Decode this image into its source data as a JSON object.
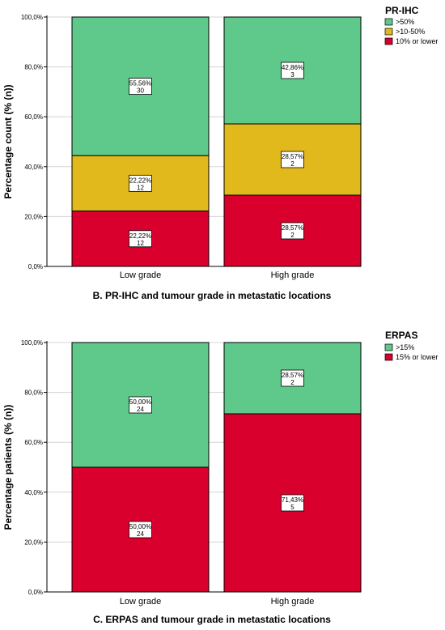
{
  "chart_data": [
    {
      "type": "bar",
      "stacked": true,
      "title": "B. PR-IHC and tumour grade in metastatic locations",
      "ylabel": "Percentage count (% (n))",
      "ylim": [
        0,
        100
      ],
      "yticks": [
        "0,0%",
        "20,0%",
        "40,0%",
        "60,0%",
        "80,0%",
        "100,0%"
      ],
      "categories": [
        "Low grade",
        "High grade"
      ],
      "legend_title": "PR-IHC",
      "legend_position": "top-right",
      "grid": true,
      "series": [
        {
          "name": "10% or lower",
          "color": "#d9002e",
          "values": [
            22.22,
            28.57
          ],
          "labels": [
            "22,22%",
            "28,57%"
          ],
          "counts": [
            "12",
            "2"
          ]
        },
        {
          "name": ">10-50%",
          "color": "#e1b91c",
          "values": [
            22.22,
            28.57
          ],
          "labels": [
            "22,22%",
            "28,57%"
          ],
          "counts": [
            "12",
            "2"
          ]
        },
        {
          "name": ">50%",
          "color": "#5ec98a",
          "values": [
            55.56,
            42.86
          ],
          "labels": [
            "55,56%",
            "42,86%"
          ],
          "counts": [
            "30",
            "3"
          ]
        }
      ]
    },
    {
      "type": "bar",
      "stacked": true,
      "title": "C. ERPAS and tumour grade in metastatic locations",
      "ylabel": "Percentage patients (% (n))",
      "ylim": [
        0,
        100
      ],
      "yticks": [
        "0,0%",
        "20,0%",
        "40,0%",
        "60,0%",
        "80,0%",
        "100,0%"
      ],
      "categories": [
        "Low grade",
        "High grade"
      ],
      "legend_title": "ERPAS",
      "legend_position": "top-right",
      "grid": true,
      "series": [
        {
          "name": "15% or lower",
          "color": "#d9002e",
          "values": [
            50.0,
            71.43
          ],
          "labels": [
            "50,00%",
            "71,43%"
          ],
          "counts": [
            "24",
            "5"
          ]
        },
        {
          "name": ">15%",
          "color": "#5ec98a",
          "values": [
            50.0,
            28.57
          ],
          "labels": [
            "50,00%",
            "28,57%"
          ],
          "counts": [
            "24",
            "2"
          ]
        }
      ]
    }
  ]
}
